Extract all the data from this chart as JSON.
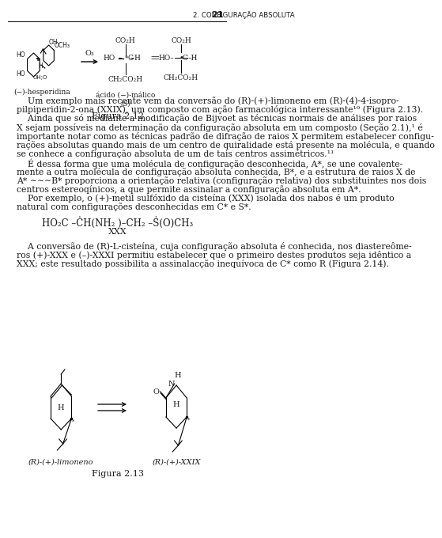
{
  "page_header_left": "2. CONFIGURAÇÃO ABSOLUTA",
  "page_header_num": "21",
  "fig212_caption": "Figura 2.12",
  "fig213_caption": "Figura 2.13",
  "label_hesperidina": "(−)-hesperidina",
  "label_malico": "ácido (−)-málico",
  "label_S": "(S)",
  "label_limoneno": "(R)-(+)-limoneno",
  "label_XXIX": "(R)-(+)-XXIX",
  "label_XXX": "XXX",
  "body_lines": [
    "    Um exemplo mais recente vem da conversão do (R)-(+)-limoneno em (R)-(4)-4-isopro-",
    "pilpiperidin-2-ona (XXIX), um composto com ação farmacológica interessante¹⁰ (Figura 2.13).",
    "    Ainda que só mediante a modificação de Bijvoet as técnicas normais de análises por raios",
    "X sejam possíveis na determinação da configuração absoluta em um composto (Seção 2.1),¹ é",
    "importante notar como as técnicas padrão de difração de raios X permitem estabelecer configu-",
    "rações absolutas quando mais de um centro de quiralidade está presente na molécula, e quando",
    "se conhece a configuração absoluta de um de tais centros assimétricos.¹¹",
    "    É dessa forma que uma molécula de configuração desconhecida, A*, se une covalente-",
    "mente a outra molécula de configuração absoluta conhecida, B*, e a estrutura de raios X de",
    "A* ∼∼∼B* proporciona a orientação relativa (configuração relativa) dos substituintes nos dois",
    "centros estereoqínicos, a que permite assinalar a configuração absoluta em A*.",
    "    Por exemplo, o (+)-metil sulfóxido da cisteína (XXX) isolada dos nabos é um produto",
    "natural com configurações desconhecidas em C* e S*."
  ],
  "body2_lines": [
    "    A conversão de (R)-L-cisteína, cuja configuração absoluta é conhecida, nos diastereôme-",
    "ros (+)-XXX e (–)-XXXI permitiu estabelecer que o primeiro destes produtos seja idêntico a",
    "XXX; este resultado possibilita a assinalacção inequívoca de C* como R (Figura 2.14)."
  ],
  "bg_color": "#ffffff",
  "text_color": "#1a1a1a",
  "font_size": 7.8,
  "lh": 11.2
}
